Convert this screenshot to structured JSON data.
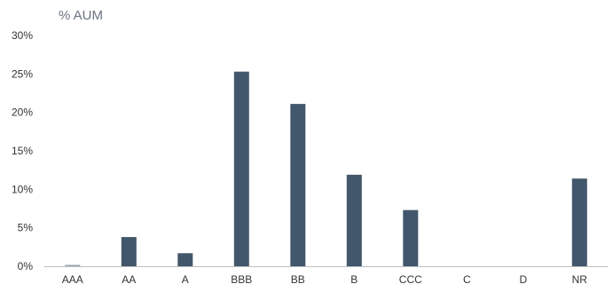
{
  "chart_data": {
    "type": "bar",
    "title": "",
    "ylabel": "% AUM",
    "xlabel": "",
    "categories": [
      "AAA",
      "AA",
      "A",
      "BBB",
      "BB",
      "B",
      "CCC",
      "C",
      "D",
      "NR"
    ],
    "values": [
      0.1,
      3.8,
      1.7,
      25.3,
      21.1,
      11.9,
      7.3,
      0,
      0,
      11.4
    ],
    "ylim": [
      0,
      30
    ],
    "yticks": [
      0,
      5,
      10,
      15,
      20,
      25,
      30
    ],
    "ytick_labels": [
      "0%",
      "5%",
      "10%",
      "15%",
      "20%",
      "25%",
      "30%"
    ],
    "grid": false,
    "legend": "none",
    "bar_color": "#42576b",
    "zero_bar_color": "#9aa3ad"
  }
}
